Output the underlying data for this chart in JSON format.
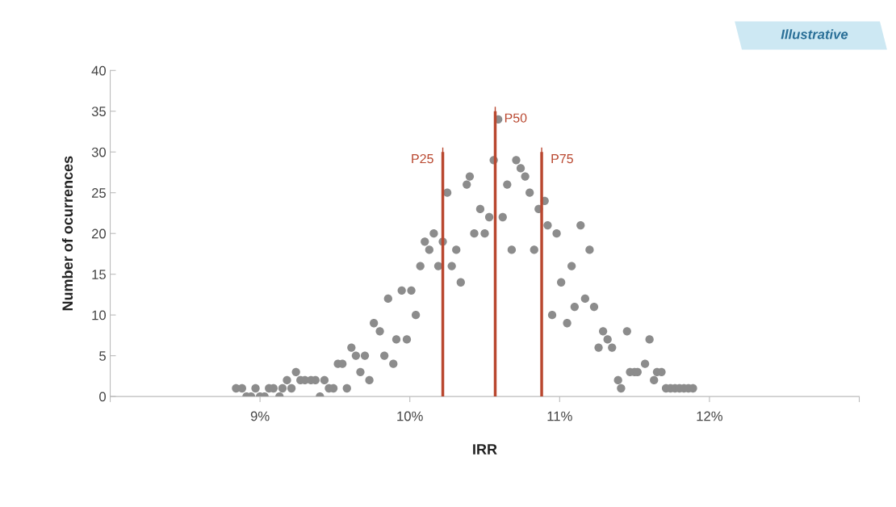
{
  "chart_data": {
    "type": "scatter",
    "xlabel": "IRR",
    "ylabel": "Number of ocurrences",
    "annotations": [
      "Illustrative"
    ],
    "xlim": [
      8,
      13
    ],
    "xticks": [
      {
        "value": 8,
        "label": null
      },
      {
        "value": 9,
        "label": "9%"
      },
      {
        "value": 10,
        "label": "10%"
      },
      {
        "value": 11,
        "label": "11%"
      },
      {
        "value": 12,
        "label": "12%"
      },
      {
        "value": 13,
        "label": null
      }
    ],
    "ylim": [
      0,
      40
    ],
    "yticks": [
      0,
      5,
      10,
      15,
      20,
      25,
      30,
      35,
      40
    ],
    "grid": false,
    "legend": "top",
    "series": [
      {
        "marker": "circle",
        "color": "#8c8c8c",
        "x": [
          8.84,
          8.88,
          8.91,
          8.94,
          8.97,
          9.0,
          9.03,
          9.06,
          9.09,
          9.13,
          9.15,
          9.18,
          9.21,
          9.24,
          9.27,
          9.3,
          9.34,
          9.37,
          9.4,
          9.43,
          9.46,
          9.49,
          9.52,
          9.55,
          9.58,
          9.61,
          9.64,
          9.67,
          9.7,
          9.73,
          9.76,
          9.8,
          9.83,
          9.855,
          9.89,
          9.91,
          9.946,
          9.98,
          10.01,
          10.04,
          10.07,
          10.1,
          10.13,
          10.16,
          10.19,
          10.22,
          10.25,
          10.28,
          10.31,
          10.34,
          10.38,
          10.4,
          10.43,
          10.47,
          10.5,
          10.53,
          10.56,
          10.59,
          10.62,
          10.65,
          10.68,
          10.71,
          10.74,
          10.77,
          10.8,
          10.83,
          10.86,
          10.9,
          10.92,
          10.95,
          10.98,
          11.01,
          11.05,
          11.08,
          11.1,
          11.14,
          11.17,
          11.2,
          11.23,
          11.26,
          11.29,
          11.32,
          11.35,
          11.39,
          11.41,
          11.45,
          11.47,
          11.5,
          11.52,
          11.57,
          11.6,
          11.63,
          11.65,
          11.68,
          11.71,
          11.74,
          11.77,
          11.8,
          11.83,
          11.86,
          11.89
        ],
        "values": [
          1,
          1,
          0,
          0,
          1,
          0,
          0,
          1,
          1,
          0,
          1,
          2,
          1,
          3,
          2,
          2,
          2,
          2,
          0,
          2,
          1,
          1,
          4,
          4,
          1,
          6,
          5,
          3,
          5,
          2,
          9,
          8,
          5,
          12,
          4,
          7,
          13,
          7,
          13,
          10,
          16,
          19,
          18,
          20,
          16,
          19,
          25,
          16,
          18,
          14,
          26,
          27,
          20,
          23,
          20,
          22,
          29,
          34,
          22,
          26,
          18,
          29,
          28,
          27,
          25,
          18,
          23,
          24,
          21,
          10,
          20,
          14,
          9,
          16,
          11,
          21,
          12,
          18,
          11,
          6,
          8,
          7,
          6,
          2,
          1,
          8,
          3,
          3,
          3,
          4,
          7,
          2,
          3,
          3,
          1,
          1,
          1,
          1,
          1,
          1,
          1
        ]
      },
      {
        "type": "line",
        "marker": "none",
        "name": "P25",
        "color": "#b9472f",
        "x": [
          10.22,
          10.22
        ],
        "values": [
          0,
          30
        ]
      },
      {
        "type": "line",
        "marker": "none",
        "name": "P50",
        "color": "#b9472f",
        "x": [
          10.57,
          10.57
        ],
        "values": [
          0,
          35
        ]
      },
      {
        "type": "line",
        "marker": "none",
        "name": "P75",
        "color": "#b9472f",
        "x": [
          10.88,
          10.88
        ],
        "values": [
          0,
          30
        ]
      }
    ]
  }
}
